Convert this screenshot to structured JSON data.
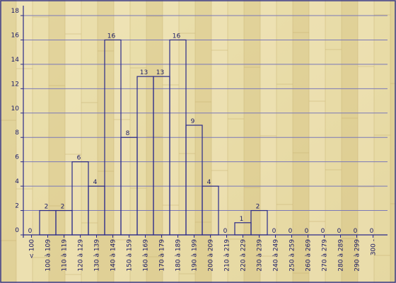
{
  "chart_data": {
    "type": "bar",
    "categories": [
      "< 100",
      "100 à 109",
      "110 à 119",
      "120 à 129",
      "130 à 139",
      "140 à 149",
      "150 à 159",
      "160 à 169",
      "170 à 179",
      "180 à 189",
      "190 à 199",
      "200 à 209",
      "210 à 219",
      "220 à 229",
      "230 à 239",
      "240 à 249",
      "250 à 259",
      "260 à 269",
      "270 à 279",
      "280 à 289",
      "290 à 299",
      "300 -"
    ],
    "values": [
      0,
      2,
      2,
      6,
      4,
      16,
      8,
      13,
      13,
      16,
      9,
      4,
      0,
      1,
      2,
      0,
      0,
      0,
      0,
      0,
      0,
      0
    ],
    "ylim": [
      0,
      18
    ],
    "yticks": [
      0,
      2,
      4,
      6,
      8,
      10,
      12,
      14,
      16,
      18
    ],
    "grid": true,
    "title": "",
    "xlabel": "",
    "ylabel": "",
    "colors": {
      "line": "#2a2a8a",
      "text": "#1a1a66",
      "grid": "#7a78b8",
      "background": "#e8dca8",
      "plank_dark": "#d9c88a",
      "plank_light": "#efe4b8",
      "frame": "#3a3a8a"
    }
  }
}
